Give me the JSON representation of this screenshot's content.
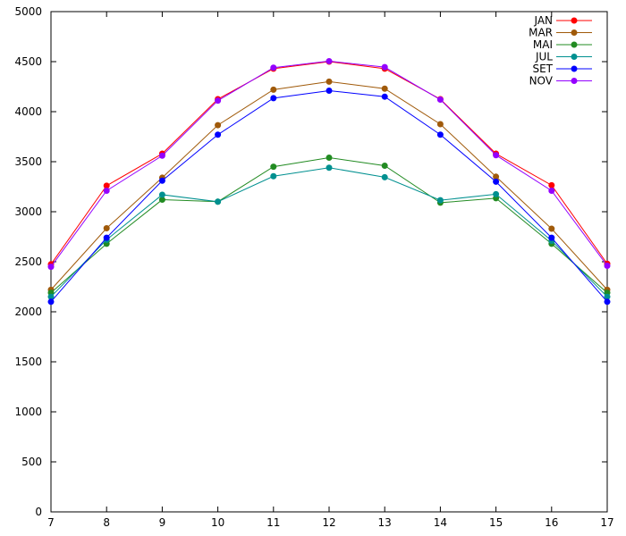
{
  "chart_data": {
    "type": "line",
    "title": "",
    "xlabel": "",
    "ylabel": "",
    "x": [
      7,
      8,
      9,
      10,
      11,
      12,
      13,
      14,
      15,
      16,
      17
    ],
    "xlim": [
      7,
      17
    ],
    "ylim": [
      0,
      5000
    ],
    "xticks": [
      7,
      8,
      9,
      10,
      11,
      12,
      13,
      14,
      15,
      16,
      17
    ],
    "yticks": [
      0,
      500,
      1000,
      1500,
      2000,
      2500,
      3000,
      3500,
      4000,
      4500,
      5000
    ],
    "grid": false,
    "legend_position": "top-right",
    "series": [
      {
        "name": "JAN",
        "color": "#ff0000",
        "values": [
          2475,
          3260,
          3580,
          4125,
          4430,
          4500,
          4430,
          4125,
          3580,
          3265,
          2480
        ]
      },
      {
        "name": "MAR",
        "color": "#a05a0a",
        "values": [
          2220,
          2835,
          3340,
          3865,
          4220,
          4300,
          4230,
          3875,
          3350,
          2830,
          2220
        ]
      },
      {
        "name": "MAI",
        "color": "#228b22",
        "values": [
          2190,
          2680,
          3120,
          3100,
          3450,
          3540,
          3460,
          3090,
          3135,
          2680,
          2190
        ]
      },
      {
        "name": "JUL",
        "color": "#009090",
        "values": [
          2150,
          2720,
          3170,
          3100,
          3355,
          3440,
          3345,
          3115,
          3175,
          2710,
          2150
        ]
      },
      {
        "name": "SET",
        "color": "#0000ff",
        "values": [
          2100,
          2740,
          3310,
          3770,
          4135,
          4210,
          4150,
          3770,
          3300,
          2740,
          2100
        ]
      },
      {
        "name": "NOV",
        "color": "#9400ff",
        "values": [
          2450,
          3210,
          3560,
          4110,
          4440,
          4505,
          4445,
          4120,
          3565,
          3210,
          2460
        ]
      }
    ]
  }
}
